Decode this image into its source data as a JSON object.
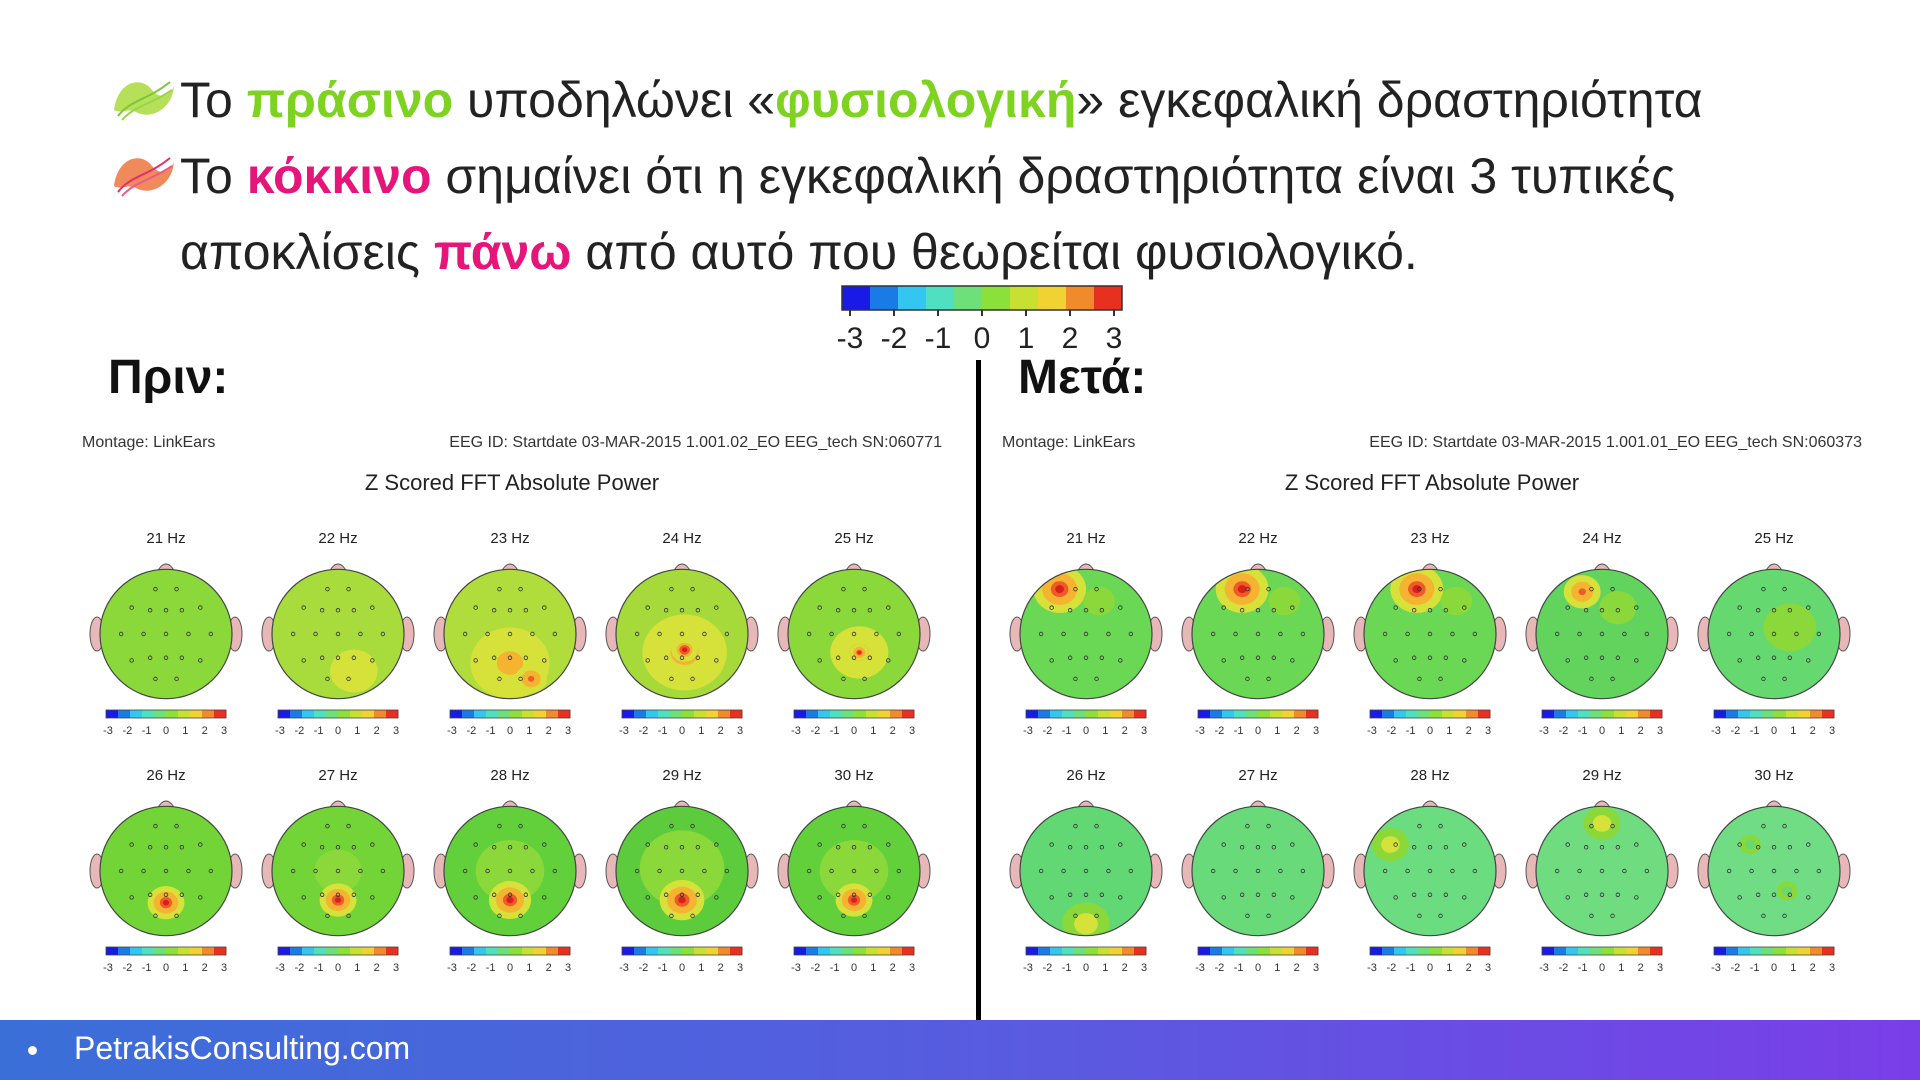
{
  "bullets": [
    {
      "icon": "green-swirl-icon",
      "parts": [
        {
          "t": "Το ",
          "c": ""
        },
        {
          "t": "πράσινο",
          "c": "g"
        },
        {
          "t": " υποδηλώνει «",
          "c": ""
        },
        {
          "t": "φυσιολογική",
          "c": "g"
        },
        {
          "t": "» εγκεφαλική δραστηριότητα",
          "c": ""
        }
      ]
    },
    {
      "icon": "pink-swirl-icon",
      "parts": [
        {
          "t": "Το ",
          "c": ""
        },
        {
          "t": "κόκκινο",
          "c": "r"
        },
        {
          "t": " σημαίνει ότι η εγκεφαλική δραστηριότητα είναι 3 τυπικές αποκλίσεις ",
          "c": ""
        },
        {
          "t": "πάνω",
          "c": "r"
        },
        {
          "t": " από αυτό που θεωρείται φυσιολογικό.",
          "c": ""
        }
      ]
    }
  ],
  "colors": {
    "green": "#7ed321",
    "pink": "#e6157a"
  },
  "scale_ticks": [
    "-3",
    "-2",
    "-1",
    "0",
    "1",
    "2",
    "3"
  ],
  "before_label": "Πριν:",
  "after_label": "Μετά:",
  "panels": [
    {
      "montage": "Montage:  LinkEars",
      "eeg_id": "EEG ID:  Startdate 03-MAR-2015 1.001.02_EO EEG_tech SN:060771",
      "title": "Z Scored FFT Absolute Power",
      "maps": [
        {
          "freq": "21 Hz",
          "base": "#8ad83a",
          "blobs": []
        },
        {
          "freq": "22 Hz",
          "base": "#a8dc3c",
          "blobs": [
            {
              "z": 1.5,
              "fx": 0.62,
              "fy": 0.78,
              "r": 0.18
            }
          ]
        },
        {
          "freq": "23 Hz",
          "base": "#b0dc3c",
          "blobs": [
            {
              "z": 1.7,
              "fx": 0.5,
              "fy": 0.72,
              "r": 0.3
            },
            {
              "z": 2.4,
              "fx": 0.66,
              "fy": 0.84,
              "r": 0.12
            }
          ]
        },
        {
          "freq": "24 Hz",
          "base": "#a6da3a",
          "blobs": [
            {
              "z": 1.6,
              "fx": 0.52,
              "fy": 0.64,
              "r": 0.32
            },
            {
              "z": 2.8,
              "fx": 0.52,
              "fy": 0.62,
              "r": 0.1
            }
          ]
        },
        {
          "freq": "25 Hz",
          "base": "#8ad83a",
          "blobs": [
            {
              "z": 1.8,
              "fx": 0.54,
              "fy": 0.64,
              "r": 0.22
            },
            {
              "z": 3.0,
              "fx": 0.54,
              "fy": 0.64,
              "r": 0.07
            }
          ]
        },
        {
          "freq": "26 Hz",
          "base": "#72d436",
          "blobs": [
            {
              "z": 2.9,
              "fx": 0.5,
              "fy": 0.74,
              "r": 0.14
            }
          ]
        },
        {
          "freq": "27 Hz",
          "base": "#72d436",
          "blobs": [
            {
              "z": 0.3,
              "fx": 0.5,
              "fy": 0.5,
              "r": 0.18
            },
            {
              "z": 2.9,
              "fx": 0.5,
              "fy": 0.72,
              "r": 0.14
            }
          ]
        },
        {
          "freq": "28 Hz",
          "base": "#62d03a",
          "blobs": [
            {
              "z": 0.3,
              "fx": 0.5,
              "fy": 0.5,
              "r": 0.26
            },
            {
              "z": 3.0,
              "fx": 0.5,
              "fy": 0.72,
              "r": 0.16
            }
          ]
        },
        {
          "freq": "29 Hz",
          "base": "#5ccc3c",
          "blobs": [
            {
              "z": 0.2,
              "fx": 0.5,
              "fy": 0.48,
              "r": 0.32
            },
            {
              "z": 3.0,
              "fx": 0.5,
              "fy": 0.72,
              "r": 0.17
            }
          ]
        },
        {
          "freq": "30 Hz",
          "base": "#62d03a",
          "blobs": [
            {
              "z": 0.3,
              "fx": 0.5,
              "fy": 0.5,
              "r": 0.26
            },
            {
              "z": 2.9,
              "fx": 0.5,
              "fy": 0.72,
              "r": 0.14
            }
          ]
        }
      ]
    },
    {
      "montage": "Montage:  LinkEars",
      "eeg_id": "EEG ID:  Startdate 03-MAR-2015 1.001.01_EO EEG_tech SN:060373",
      "title": "Z Scored FFT Absolute Power",
      "maps": [
        {
          "freq": "21 Hz",
          "base": "#6ad854",
          "blobs": [
            {
              "z": 3.0,
              "fx": 0.3,
              "fy": 0.16,
              "r": 0.2
            },
            {
              "z": 0.3,
              "fx": 0.6,
              "fy": 0.25,
              "r": 0.12
            }
          ]
        },
        {
          "freq": "22 Hz",
          "base": "#6ad854",
          "blobs": [
            {
              "z": 3.0,
              "fx": 0.38,
              "fy": 0.16,
              "r": 0.2
            },
            {
              "z": 0.3,
              "fx": 0.7,
              "fy": 0.25,
              "r": 0.12
            }
          ]
        },
        {
          "freq": "23 Hz",
          "base": "#6ad854",
          "blobs": [
            {
              "z": 3.0,
              "fx": 0.4,
              "fy": 0.16,
              "r": 0.2
            },
            {
              "z": 0.4,
              "fx": 0.7,
              "fy": 0.25,
              "r": 0.12
            }
          ]
        },
        {
          "freq": "24 Hz",
          "base": "#62d45e",
          "blobs": [
            {
              "z": 2.6,
              "fx": 0.35,
              "fy": 0.18,
              "r": 0.14
            },
            {
              "z": 0.4,
              "fx": 0.62,
              "fy": 0.3,
              "r": 0.14
            }
          ]
        },
        {
          "freq": "25 Hz",
          "base": "#66d870",
          "blobs": [
            {
              "z": 0.2,
              "fx": 0.62,
              "fy": 0.45,
              "r": 0.2
            }
          ]
        },
        {
          "freq": "26 Hz",
          "base": "#62d874",
          "blobs": [
            {
              "z": 1.0,
              "fx": 0.5,
              "fy": 0.9,
              "r": 0.18
            }
          ]
        },
        {
          "freq": "27 Hz",
          "base": "#68da7a",
          "blobs": []
        },
        {
          "freq": "28 Hz",
          "base": "#6cdc80",
          "blobs": [
            {
              "z": 1.0,
              "fx": 0.2,
              "fy": 0.3,
              "r": 0.14
            }
          ]
        },
        {
          "freq": "29 Hz",
          "base": "#70dc80",
          "blobs": [
            {
              "z": 1.0,
              "fx": 0.5,
              "fy": 0.14,
              "r": 0.14
            }
          ]
        },
        {
          "freq": "30 Hz",
          "base": "#70dc84",
          "blobs": [
            {
              "z": 0.0,
              "fx": 0.6,
              "fy": 0.65,
              "r": 0.08
            },
            {
              "z": 0.0,
              "fx": 0.32,
              "fy": 0.3,
              "r": 0.08
            }
          ]
        }
      ]
    }
  ],
  "footer": {
    "site": "PetrakisConsulting.com"
  }
}
